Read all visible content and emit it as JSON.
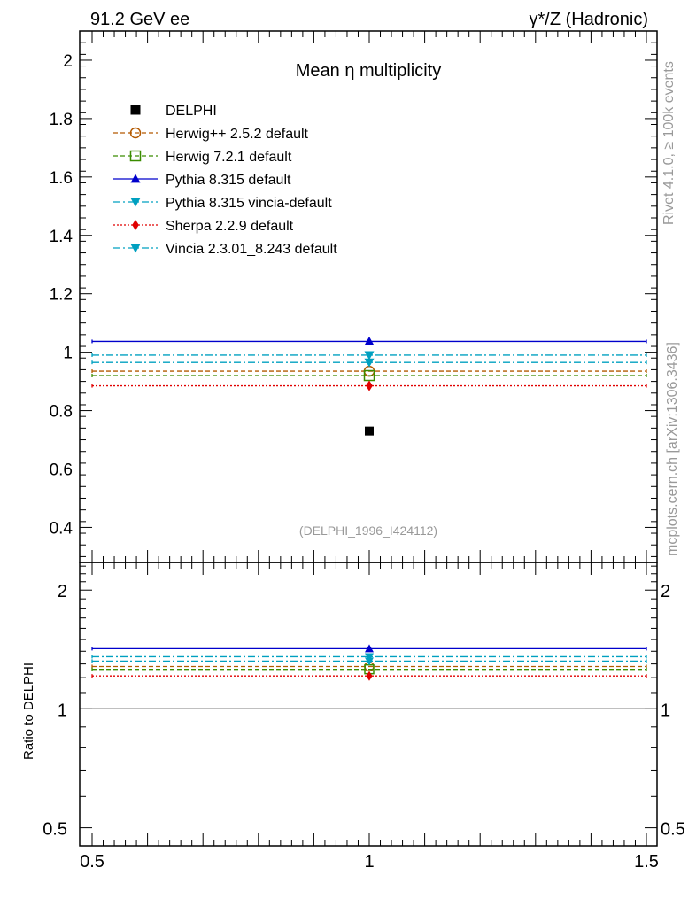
{
  "header": {
    "left": "91.2 GeV ee",
    "right": "γ*/Z (Hadronic)"
  },
  "side_labels": {
    "top": "Rivet 4.1.0, ≥ 100k events",
    "bottom": "mcplots.cern.ch [arXiv:1306.3436]"
  },
  "chart_data": [
    {
      "type": "scatter",
      "title": "Mean η multiplicity",
      "analysis_id": "(DELPHI_1996_I424112)",
      "xlabel": "",
      "ylabel": "",
      "xlim": [
        0.5,
        1.5
      ],
      "ylim": [
        0.28,
        2.1
      ],
      "x_ticks": [
        0.5,
        1,
        1.5
      ],
      "x_tick_labels": [
        "0.5",
        "1",
        "1.5"
      ],
      "y_ticks": [
        0.4,
        0.6,
        0.8,
        1,
        1.2,
        1.4,
        1.6,
        1.8,
        2
      ],
      "y_tick_labels": [
        "0.4",
        "0.6",
        "0.8",
        "1",
        "1.2",
        "1.4",
        "1.6",
        "1.8",
        "2"
      ],
      "legend_position": "top-left",
      "data_point": {
        "name": "DELPHI",
        "x": 1,
        "y": 0.73,
        "color": "#000000",
        "marker": "square"
      },
      "series": [
        {
          "name": "Herwig++ 2.5.2 default",
          "y": 0.935,
          "color": "#b35900",
          "dash": "dashed",
          "marker": "circle-open"
        },
        {
          "name": "Herwig 7.2.1 default",
          "y": 0.92,
          "color": "#3a8c00",
          "dash": "dashed",
          "marker": "square-open"
        },
        {
          "name": "Pythia 8.315 default",
          "y": 1.037,
          "color": "#0000cc",
          "dash": "solid",
          "marker": "triangle-up"
        },
        {
          "name": "Pythia 8.315 vincia-default",
          "y": 0.965,
          "color": "#00a0c0",
          "dash": "dashdot",
          "marker": "triangle-down"
        },
        {
          "name": "Sherpa 2.2.9 default",
          "y": 0.885,
          "color": "#e00000",
          "dash": "dotted",
          "marker": "diamond"
        },
        {
          "name": "Vincia 2.3.01_8.243 default",
          "y": 0.99,
          "color": "#00a0c0",
          "dash": "dashdot",
          "marker": "triangle-down"
        }
      ]
    },
    {
      "type": "scatter",
      "title": "",
      "ylabel": "Ratio to DELPHI",
      "xlim": [
        0.5,
        1.5
      ],
      "ylim": [
        0.45,
        2.35
      ],
      "y_scale": "log",
      "y_ticks": [
        0.5,
        1,
        2
      ],
      "y_tick_labels": [
        "0.5",
        "1",
        "2"
      ],
      "reference_line": 1,
      "series": [
        {
          "name": "Herwig++ 2.5.2 default",
          "y": 1.281
        },
        {
          "name": "Herwig 7.2.1 default",
          "y": 1.26
        },
        {
          "name": "Pythia 8.315 default",
          "y": 1.421
        },
        {
          "name": "Pythia 8.315 vincia-default",
          "y": 1.322
        },
        {
          "name": "Sherpa 2.2.9 default",
          "y": 1.212
        },
        {
          "name": "Vincia 2.3.01_8.243 default",
          "y": 1.356
        }
      ]
    }
  ]
}
